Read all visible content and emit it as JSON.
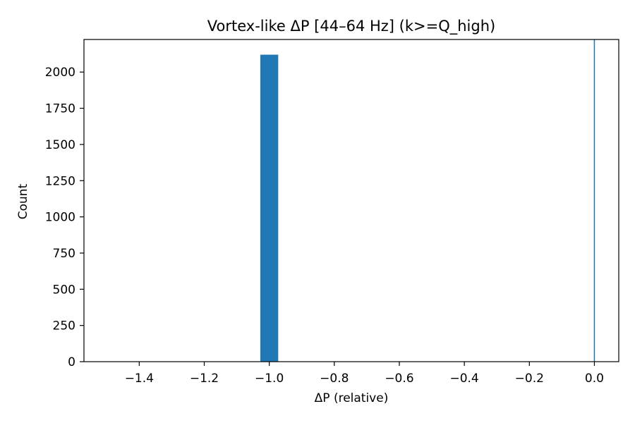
{
  "chart_data": {
    "type": "bar",
    "title": "Vortex-like ΔP  [44–64 Hz] (k>=Q_high)",
    "xlabel": "ΔP (relative)",
    "ylabel": "Count",
    "xlim": [
      -1.57,
      0.075
    ],
    "ylim": [
      0,
      2225
    ],
    "xticks": [
      -1.4,
      -1.2,
      -1.0,
      -0.8,
      -0.6,
      -0.4,
      -0.2,
      0.0
    ],
    "xtick_labels": [
      "−1.4",
      "−1.2",
      "−1.0",
      "−0.8",
      "−0.6",
      "−0.4",
      "−0.2",
      "0.0"
    ],
    "yticks": [
      0,
      250,
      500,
      750,
      1000,
      1250,
      1500,
      1750,
      2000
    ],
    "ytick_labels": [
      "0",
      "250",
      "500",
      "750",
      "1000",
      "1250",
      "1500",
      "1750",
      "2000"
    ],
    "bins": [
      {
        "x0": -1.0275,
        "x1": -0.9725,
        "count": 2120
      }
    ],
    "reference_line": {
      "x": 0.0
    },
    "bar_color": "#1f77b4",
    "line_color": "#1f77b4",
    "grid": false,
    "legend": "none"
  }
}
